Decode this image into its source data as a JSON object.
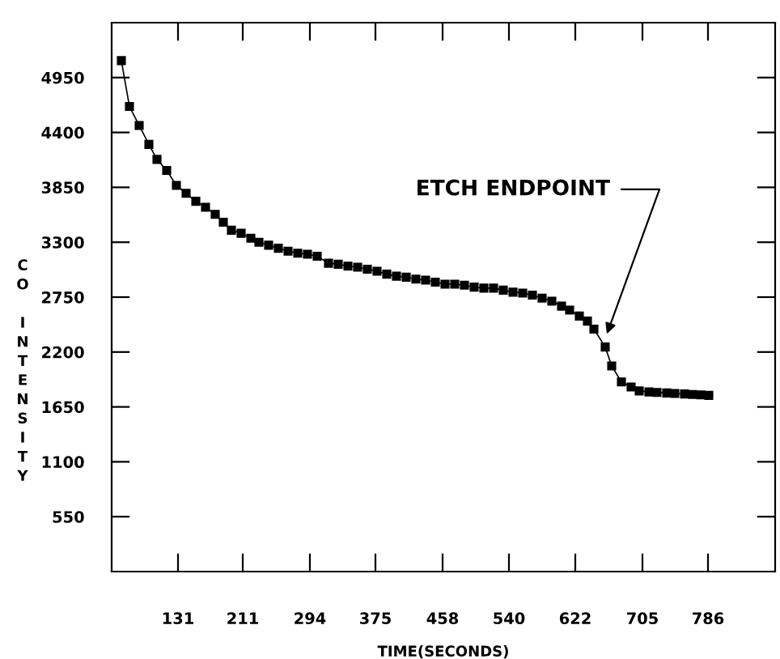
{
  "chart_data": {
    "type": "line",
    "xlabel": "TIME(SECONDS)",
    "ylabel": "CO INTENSITY",
    "x": [
      61,
      71,
      83,
      95,
      105,
      117,
      129,
      141,
      153,
      165,
      177,
      187,
      197,
      209,
      221,
      231,
      243,
      255,
      267,
      279,
      291,
      303,
      317,
      329,
      341,
      353,
      365,
      377,
      389,
      401,
      413,
      425,
      437,
      449,
      461,
      473,
      485,
      497,
      509,
      521,
      533,
      545,
      557,
      569,
      581,
      593,
      605,
      615,
      627,
      637,
      645,
      659,
      667,
      679,
      691,
      701,
      713,
      723,
      735,
      745,
      757,
      767,
      777,
      787
    ],
    "series": [
      {
        "color": "#000000",
        "values": [
          5120,
          4660,
          4470,
          4280,
          4130,
          4020,
          3870,
          3790,
          3710,
          3650,
          3580,
          3500,
          3420,
          3390,
          3340,
          3300,
          3270,
          3240,
          3210,
          3190,
          3180,
          3160,
          3090,
          3080,
          3060,
          3050,
          3030,
          3010,
          2980,
          2960,
          2950,
          2930,
          2920,
          2900,
          2880,
          2880,
          2870,
          2850,
          2840,
          2840,
          2820,
          2800,
          2790,
          2770,
          2740,
          2710,
          2660,
          2620,
          2560,
          2510,
          2430,
          2250,
          2060,
          1900,
          1850,
          1810,
          1800,
          1795,
          1790,
          1785,
          1780,
          1775,
          1770,
          1765
        ]
      }
    ],
    "xlim": [
      49,
      869
    ],
    "ylim": [
      0,
      5500
    ],
    "xticks": [
      131,
      211,
      294,
      375,
      458,
      540,
      622,
      705,
      786
    ],
    "yticks": [
      550,
      1100,
      1650,
      2200,
      2750,
      3300,
      3850,
      4400,
      4950
    ],
    "marker": "square",
    "line_style": "solid",
    "grid": false,
    "legend": false,
    "annotations": [
      {
        "text": "ETCH ENDPOINT",
        "x": 661,
        "y": 2380
      }
    ]
  }
}
